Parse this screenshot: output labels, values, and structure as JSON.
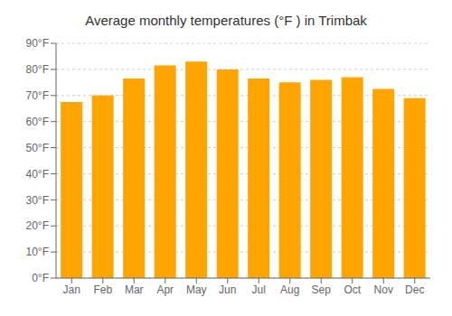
{
  "chart_data": {
    "type": "bar",
    "title": "Average monthly temperatures (°F ) in Trimbak",
    "categories": [
      "Jan",
      "Feb",
      "Mar",
      "Apr",
      "May",
      "Jun",
      "Jul",
      "Aug",
      "Sep",
      "Oct",
      "Nov",
      "Dec"
    ],
    "values": [
      67.5,
      70.0,
      76.5,
      81.5,
      83.0,
      80.0,
      76.5,
      75.0,
      76.0,
      77.0,
      72.5,
      69.0
    ],
    "color": "#FFA500",
    "ylim": [
      0,
      90
    ],
    "yticks": [
      {
        "value": 0,
        "label": "0°F"
      },
      {
        "value": 10,
        "label": "10°F"
      },
      {
        "value": 20,
        "label": "20°F"
      },
      {
        "value": 30,
        "label": "30°F"
      },
      {
        "value": 40,
        "label": "40°F"
      },
      {
        "value": 50,
        "label": "50°F"
      },
      {
        "value": 60,
        "label": "60°F"
      },
      {
        "value": 70,
        "label": "70°F"
      },
      {
        "value": 80,
        "label": "80°F"
      },
      {
        "value": 90,
        "label": "90°F"
      }
    ],
    "grid": true
  }
}
